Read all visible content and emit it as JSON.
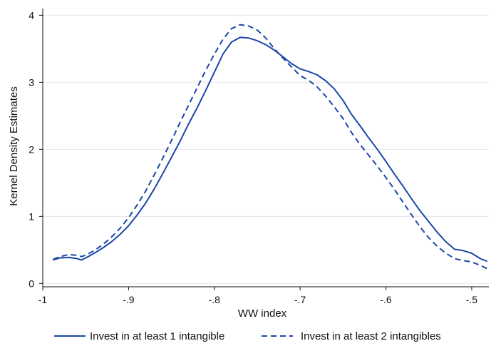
{
  "chart_data": {
    "type": "line",
    "title": "",
    "xlabel": "WW index",
    "ylabel": "Kernel Density Estimates",
    "xlim": [
      -1.0,
      -0.48
    ],
    "ylim": [
      -0.05,
      4.1
    ],
    "x_ticks": [
      -1,
      -0.9,
      -0.8,
      -0.7,
      -0.6,
      -0.5
    ],
    "x_tick_labels": [
      "-1",
      "-.9",
      "-.8",
      "-.7",
      "-.6",
      "-.5"
    ],
    "y_ticks": [
      0,
      1,
      2,
      3,
      4
    ],
    "y_tick_labels": [
      "0",
      "1",
      "2",
      "3",
      "4"
    ],
    "grid": "horizontal",
    "legend_position": "bottom",
    "colors": {
      "series": "#1a47a6",
      "grid": "#e6e6e6",
      "axis": "#111111"
    },
    "series": [
      {
        "name": "Invest in at least 1 intangible",
        "style": "solid",
        "x": [
          -0.988,
          -0.98,
          -0.97,
          -0.96,
          -0.955,
          -0.95,
          -0.94,
          -0.93,
          -0.92,
          -0.91,
          -0.9,
          -0.89,
          -0.88,
          -0.87,
          -0.86,
          -0.85,
          -0.84,
          -0.83,
          -0.82,
          -0.81,
          -0.8,
          -0.79,
          -0.78,
          -0.77,
          -0.76,
          -0.75,
          -0.74,
          -0.73,
          -0.72,
          -0.71,
          -0.7,
          -0.69,
          -0.68,
          -0.67,
          -0.66,
          -0.65,
          -0.64,
          -0.63,
          -0.62,
          -0.61,
          -0.6,
          -0.59,
          -0.58,
          -0.57,
          -0.56,
          -0.55,
          -0.54,
          -0.53,
          -0.52,
          -0.51,
          -0.5,
          -0.49,
          -0.482
        ],
        "y": [
          0.35,
          0.38,
          0.39,
          0.37,
          0.35,
          0.38,
          0.45,
          0.53,
          0.62,
          0.73,
          0.86,
          1.02,
          1.2,
          1.41,
          1.64,
          1.88,
          2.12,
          2.38,
          2.62,
          2.88,
          3.15,
          3.42,
          3.6,
          3.67,
          3.66,
          3.62,
          3.56,
          3.48,
          3.38,
          3.28,
          3.2,
          3.16,
          3.11,
          3.02,
          2.9,
          2.73,
          2.52,
          2.35,
          2.17,
          2.0,
          1.82,
          1.63,
          1.45,
          1.26,
          1.08,
          0.92,
          0.76,
          0.62,
          0.51,
          0.49,
          0.45,
          0.37,
          0.33
        ]
      },
      {
        "name": "Invest in at least 2 intangibles",
        "style": "dashed",
        "x": [
          -0.988,
          -0.98,
          -0.97,
          -0.96,
          -0.955,
          -0.95,
          -0.94,
          -0.93,
          -0.92,
          -0.91,
          -0.9,
          -0.89,
          -0.88,
          -0.87,
          -0.86,
          -0.85,
          -0.84,
          -0.83,
          -0.82,
          -0.81,
          -0.8,
          -0.79,
          -0.78,
          -0.77,
          -0.76,
          -0.75,
          -0.74,
          -0.73,
          -0.72,
          -0.71,
          -0.7,
          -0.69,
          -0.68,
          -0.67,
          -0.66,
          -0.65,
          -0.64,
          -0.63,
          -0.62,
          -0.61,
          -0.6,
          -0.59,
          -0.58,
          -0.57,
          -0.56,
          -0.55,
          -0.54,
          -0.53,
          -0.52,
          -0.51,
          -0.5,
          -0.49,
          -0.482
        ],
        "y": [
          0.36,
          0.4,
          0.43,
          0.42,
          0.4,
          0.42,
          0.49,
          0.58,
          0.69,
          0.82,
          0.98,
          1.17,
          1.38,
          1.62,
          1.87,
          2.13,
          2.4,
          2.66,
          2.92,
          3.18,
          3.42,
          3.64,
          3.8,
          3.86,
          3.84,
          3.78,
          3.66,
          3.5,
          3.36,
          3.23,
          3.1,
          3.03,
          2.93,
          2.79,
          2.63,
          2.46,
          2.25,
          2.07,
          1.91,
          1.75,
          1.58,
          1.4,
          1.21,
          1.02,
          0.84,
          0.68,
          0.55,
          0.45,
          0.37,
          0.34,
          0.32,
          0.27,
          0.22
        ]
      }
    ]
  }
}
